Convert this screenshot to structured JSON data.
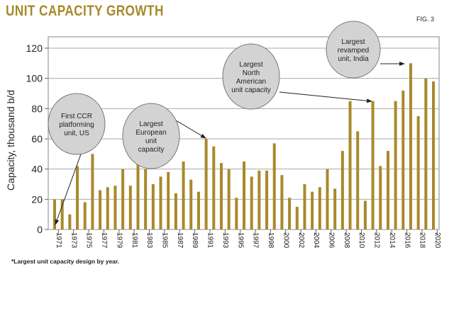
{
  "chart_data": {
    "type": "bar",
    "title": "UNIT CAPACITY GROWTH",
    "figure_label": "FIG. 3",
    "ylabel": "Capacity, thousand b/d",
    "xlabel": "",
    "ylim": [
      0,
      120
    ],
    "yticks": [
      0,
      20,
      40,
      60,
      80,
      100,
      120
    ],
    "grid": true,
    "bar_color": "#a8892a",
    "x_tick_labels": [
      "1971",
      "1973",
      "1975",
      "1977",
      "1979",
      "1981",
      "1983",
      "1985",
      "1987",
      "1989",
      "1991",
      "1993",
      "1995",
      "1997",
      "1998",
      "2000",
      "2002",
      "2004",
      "2006",
      "2008",
      "2010",
      "2012",
      "2014",
      "2016",
      "2018",
      "2020"
    ],
    "values": [
      20,
      20,
      10,
      42,
      18,
      50,
      26,
      28,
      29,
      40,
      29,
      45,
      40,
      30,
      35,
      38,
      24,
      45,
      33,
      25,
      60,
      55,
      44,
      40,
      21,
      45,
      35,
      39,
      39,
      57,
      36,
      21,
      15,
      30,
      25,
      28,
      40,
      27,
      52,
      85,
      65,
      19,
      85,
      42,
      52,
      85,
      92,
      110,
      75,
      100,
      98
    ],
    "annotations": [
      {
        "text": [
          "First CCR",
          "platforming",
          "unit, US"
        ],
        "bar_index": 0
      },
      {
        "text": [
          "Largest",
          "European",
          "unit",
          "capacity"
        ],
        "bar_index": 20
      },
      {
        "text": [
          "Largest",
          "North",
          "American",
          "unit capacity"
        ],
        "bar_index": 42
      },
      {
        "text": [
          "Largest",
          "revamped",
          "unit, India"
        ],
        "bar_index": 47
      }
    ],
    "footnote": "*Largest unit capacity design by year."
  }
}
